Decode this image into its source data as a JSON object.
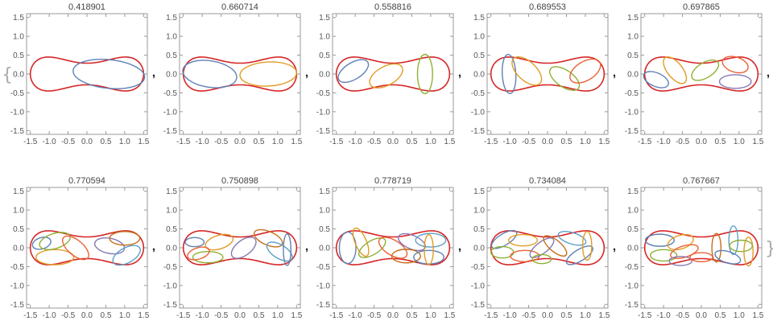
{
  "chart_data": [
    {
      "type": "scatter",
      "title": "0.418901",
      "ellipses": [
        [
          0.58,
          0.0,
          0.95,
          0.38,
          -0.1
        ]
      ]
    },
    {
      "type": "scatter",
      "title": "0.660714",
      "ellipses": [
        [
          -0.8,
          0.0,
          0.72,
          0.35,
          -0.15
        ],
        [
          0.75,
          0.0,
          0.75,
          0.32,
          0.05
        ]
      ]
    },
    {
      "type": "scatter",
      "title": "0.558816",
      "ellipses": [
        [
          -1.05,
          0.08,
          0.45,
          0.22,
          0.55
        ],
        [
          -0.18,
          -0.05,
          0.48,
          0.25,
          0.5
        ],
        [
          0.85,
          0.0,
          0.2,
          0.52,
          0.0
        ]
      ]
    },
    {
      "type": "scatter",
      "title": "0.689553",
      "ellipses": [
        [
          -1.02,
          0.0,
          0.18,
          0.52,
          0.05
        ],
        [
          -0.55,
          0.08,
          0.48,
          0.25,
          -0.75
        ],
        [
          0.45,
          -0.12,
          0.45,
          0.22,
          -0.6
        ],
        [
          1.0,
          0.08,
          0.45,
          0.25,
          0.55
        ]
      ]
    },
    {
      "type": "scatter",
      "title": "0.697865",
      "ellipses": [
        [
          -1.2,
          -0.15,
          0.35,
          0.18,
          -0.4
        ],
        [
          -0.7,
          0.1,
          0.42,
          0.2,
          -0.9
        ],
        [
          0.1,
          0.1,
          0.4,
          0.2,
          0.55
        ],
        [
          0.9,
          0.25,
          0.35,
          0.2,
          -0.3
        ],
        [
          0.9,
          -0.2,
          0.42,
          0.18,
          0.0
        ]
      ]
    },
    {
      "type": "scatter",
      "title": "0.770594",
      "ellipses": [
        [
          -1.2,
          0.12,
          0.25,
          0.15,
          0.3
        ],
        [
          -0.85,
          -0.25,
          0.5,
          0.2,
          0.0
        ],
        [
          -0.85,
          0.18,
          0.42,
          0.2,
          0.3
        ],
        [
          -0.3,
          0.0,
          0.42,
          0.2,
          -0.7
        ],
        [
          0.6,
          0.05,
          0.4,
          0.2,
          -0.2
        ],
        [
          1.0,
          0.25,
          0.4,
          0.18,
          0.0
        ],
        [
          1.05,
          -0.2,
          0.4,
          0.2,
          0.5
        ]
      ]
    },
    {
      "type": "scatter",
      "title": "0.750898",
      "ellipses": [
        [
          -1.2,
          0.15,
          0.25,
          0.12,
          0.0
        ],
        [
          -0.55,
          0.15,
          0.38,
          0.18,
          0.3
        ],
        [
          -0.85,
          -0.25,
          0.4,
          0.15,
          0.0
        ],
        [
          -1.1,
          -0.15,
          0.3,
          0.15,
          0.3
        ],
        [
          0.1,
          0.0,
          0.38,
          0.2,
          0.65
        ],
        [
          0.75,
          0.25,
          0.4,
          0.18,
          -0.4
        ],
        [
          1.05,
          -0.1,
          0.38,
          0.18,
          -0.55
        ],
        [
          1.25,
          -0.05,
          0.1,
          0.42,
          0.0
        ]
      ]
    },
    {
      "type": "scatter",
      "title": "0.778719",
      "ellipses": [
        [
          -1.2,
          0.0,
          0.22,
          0.42,
          0.0
        ],
        [
          -0.85,
          0.15,
          0.15,
          0.4,
          0.4
        ],
        [
          -0.55,
          0.0,
          0.4,
          0.18,
          0.55
        ],
        [
          0.0,
          0.0,
          0.42,
          0.2,
          -0.55
        ],
        [
          0.5,
          0.15,
          0.38,
          0.18,
          -0.4
        ],
        [
          0.35,
          -0.22,
          0.38,
          0.18,
          0.0
        ],
        [
          1.0,
          0.2,
          0.4,
          0.18,
          0.0
        ],
        [
          0.95,
          -0.25,
          0.4,
          0.18,
          0.0
        ],
        [
          0.95,
          -0.05,
          0.12,
          0.4,
          0.0
        ]
      ]
    },
    {
      "type": "scatter",
      "title": "0.734084",
      "ellipses": [
        [
          -1.15,
          0.22,
          0.38,
          0.15,
          0.55
        ],
        [
          -0.65,
          0.2,
          0.38,
          0.15,
          0.0
        ],
        [
          -1.2,
          -0.12,
          0.3,
          0.15,
          0.0
        ],
        [
          -0.6,
          -0.22,
          0.38,
          0.15,
          0.0
        ],
        [
          -0.15,
          0.0,
          0.38,
          0.15,
          0.65
        ],
        [
          0.2,
          0.05,
          0.38,
          0.15,
          -0.7
        ],
        [
          0.65,
          0.25,
          0.38,
          0.15,
          -0.3
        ],
        [
          0.85,
          -0.2,
          0.4,
          0.15,
          0.55
        ],
        [
          1.05,
          0.05,
          0.12,
          0.38,
          0.0
        ],
        [
          -0.15,
          -0.3,
          0.25,
          0.12,
          0.0
        ]
      ]
    },
    {
      "type": "scatter",
      "title": "0.767667",
      "ellipses": [
        [
          -1.1,
          0.2,
          0.38,
          0.16,
          0.0
        ],
        [
          -0.55,
          0.15,
          0.35,
          0.18,
          0.3
        ],
        [
          -1.0,
          -0.2,
          0.35,
          0.15,
          0.0
        ],
        [
          -0.45,
          -0.1,
          0.38,
          0.15,
          0.3
        ],
        [
          -0.55,
          -0.35,
          0.3,
          0.12,
          0.0
        ],
        [
          0.4,
          0.0,
          0.12,
          0.38,
          0.0
        ],
        [
          0.85,
          0.2,
          0.12,
          0.38,
          0.0
        ],
        [
          0.7,
          -0.25,
          0.35,
          0.15,
          -0.3
        ],
        [
          1.25,
          -0.1,
          0.12,
          0.38,
          0.0
        ],
        [
          1.05,
          0.05,
          0.3,
          0.15,
          0.0
        ],
        [
          0.0,
          -0.25,
          0.3,
          0.12,
          0.0
        ]
      ]
    }
  ],
  "axes": {
    "xlim": [
      -1.6,
      1.6
    ],
    "ylim": [
      -1.6,
      1.6
    ],
    "xticks": [
      "-1.5",
      "-1.0",
      "-0.5",
      "0.0",
      "0.5",
      "1.0",
      "1.5"
    ],
    "yticks": [
      "1.5",
      "1.0",
      "0.5",
      "0.0",
      "-0.5",
      "-1.0",
      "-1.5"
    ],
    "xtick_values": [
      -1.5,
      -1.0,
      -0.5,
      0.0,
      0.5,
      1.0,
      1.5
    ],
    "ytick_values": [
      1.5,
      1.0,
      0.5,
      0.0,
      -0.5,
      -1.0,
      -1.5
    ]
  },
  "list_syntax": {
    "separator": ",",
    "open_brace": "{",
    "close_brace": "}"
  },
  "colors": {
    "boundary": "#d62728",
    "palette": [
      "#5E81B5",
      "#E19C24",
      "#8FB032",
      "#EB6235",
      "#8778B3",
      "#C56E1A",
      "#5D9EC7"
    ],
    "frame": "#999999"
  }
}
